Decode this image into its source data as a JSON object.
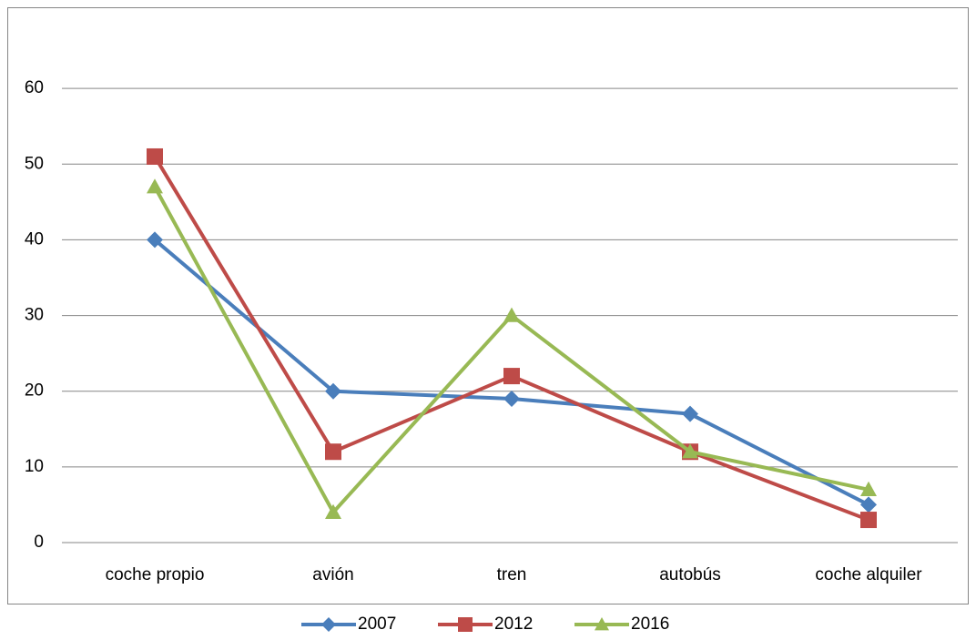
{
  "chart_data": {
    "type": "line",
    "categories": [
      "coche propio",
      "avión",
      "tren",
      "autobús",
      "coche alquiler"
    ],
    "series": [
      {
        "name": "2007",
        "color": "#4a7ebb",
        "marker": "diamond",
        "values": [
          40,
          20,
          19,
          17,
          5
        ]
      },
      {
        "name": "2012",
        "color": "#be4b48",
        "marker": "square",
        "values": [
          51,
          12,
          22,
          12,
          3
        ]
      },
      {
        "name": "2016",
        "color": "#98b954",
        "marker": "triangle",
        "values": [
          47,
          4,
          30,
          12,
          7
        ]
      }
    ],
    "ylim": [
      0,
      70
    ],
    "yticks": [
      0,
      10,
      20,
      30,
      40,
      50,
      60
    ],
    "grid": true,
    "legend": "bottom"
  }
}
